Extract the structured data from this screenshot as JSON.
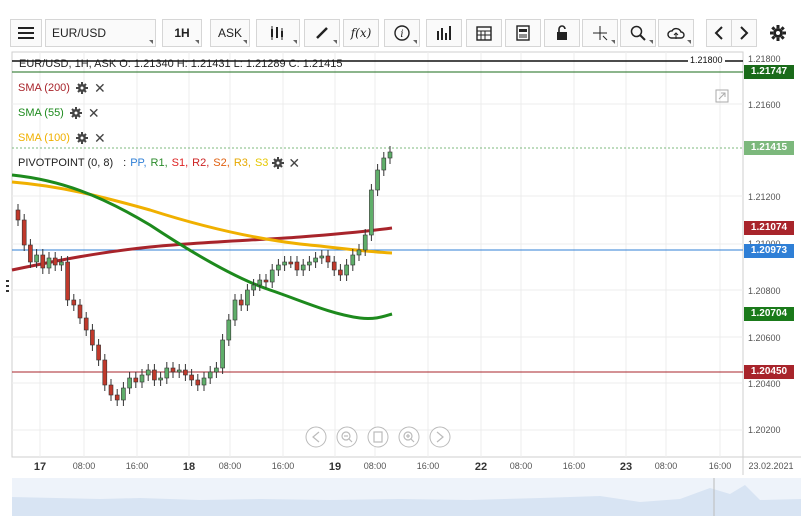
{
  "toolbar": {
    "symbol": "EUR/USD",
    "interval": "1H",
    "price_type": "ASK"
  },
  "ohlc_header": "EUR/USD, 1H, ASK   O: 1.21340 H: 1.21431 L: 1.21289 C: 1.21415",
  "legend": {
    "sma200": "SMA (200)",
    "sma55": "SMA (55)",
    "sma100": "SMA (100)",
    "pivot_prefix": "PIVOTPOINT (0, 8)",
    "pivot_items": [
      {
        "label": "PP,",
        "color": "#2f7fd6"
      },
      {
        "label": "R1,",
        "color": "#2a8a2a"
      },
      {
        "label": "S1,",
        "color": "#d22"
      },
      {
        "label": "R2,",
        "color": "#c22"
      },
      {
        "label": "S2,",
        "color": "#e06010"
      },
      {
        "label": "R3,",
        "color": "#e6a800"
      },
      {
        "label": "S3",
        "color": "#e6c800"
      }
    ]
  },
  "price_tags": [
    {
      "value": "1.21747",
      "color": "#1a6b1a"
    },
    {
      "value": "1.21415",
      "color": "#7cb87c"
    },
    {
      "value": "1.21074",
      "color": "#a8242b"
    },
    {
      "value": "1.20973",
      "color": "#2f7fd6"
    },
    {
      "value": "1.20704",
      "color": "#1a7a1a"
    },
    {
      "value": "1.20450",
      "color": "#a8242b"
    }
  ],
  "top_line_value": "1.21800",
  "y_axis": [
    "1.21800",
    "1.21600",
    "1.21200",
    "1.21000",
    "1.20800",
    "1.20600",
    "1.20400",
    "1.20200"
  ],
  "x_axis": [
    {
      "label": "17",
      "big": true
    },
    {
      "label": "08:00",
      "big": false
    },
    {
      "label": "16:00",
      "big": false
    },
    {
      "label": "18",
      "big": true
    },
    {
      "label": "08:00",
      "big": false
    },
    {
      "label": "16:00",
      "big": false
    },
    {
      "label": "19",
      "big": true
    },
    {
      "label": "08:00",
      "big": false
    },
    {
      "label": "16:00",
      "big": false
    },
    {
      "label": "22",
      "big": true
    },
    {
      "label": "08:00",
      "big": false
    },
    {
      "label": "16:00",
      "big": false
    },
    {
      "label": "23",
      "big": true
    },
    {
      "label": "08:00",
      "big": false
    },
    {
      "label": "16:00",
      "big": false
    },
    {
      "label": "23.02.2021",
      "big": false
    }
  ],
  "colors": {
    "bull": "#5fae6a",
    "bear": "#c0392b",
    "sma200": "#a8242b",
    "sma55": "#1d8a1d",
    "sma100": "#f0b000",
    "pivot": "#2f7fd6"
  }
}
